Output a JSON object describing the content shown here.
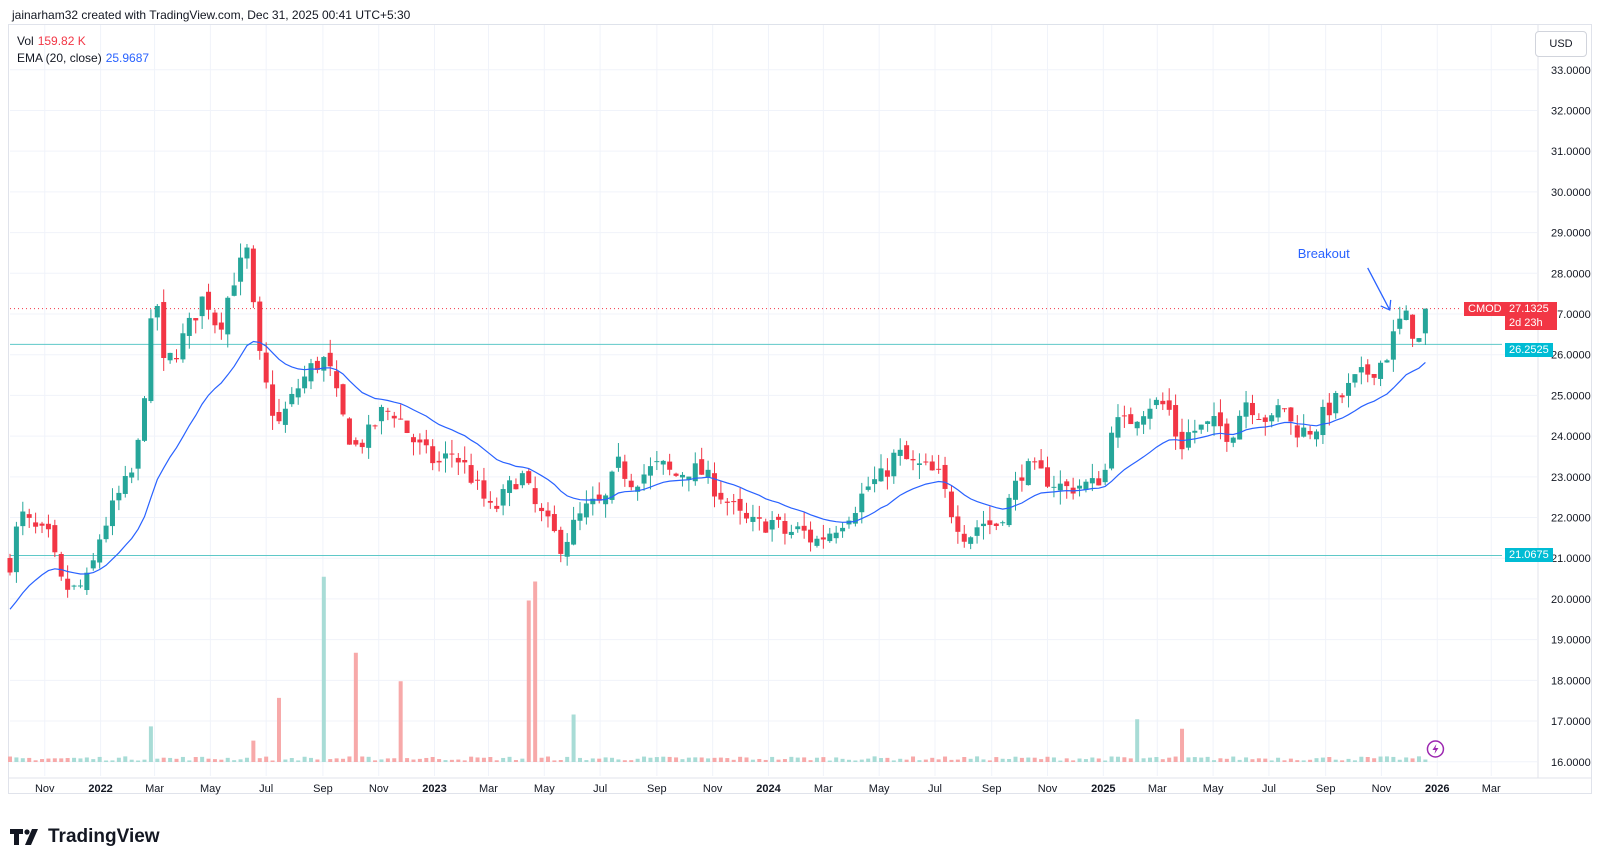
{
  "header": {
    "credit": "jainarham32 created with TradingView.com, Dec 31, 2025 00:41 UTC+5:30"
  },
  "legend": {
    "vol_label": "Vol",
    "vol_value": "159.82 K",
    "ema_label": "EMA (20, close)",
    "ema_value": "25.9687"
  },
  "currency": "USD",
  "brand": "TradingView",
  "annotation": {
    "text": "Breakout"
  },
  "price_tag": {
    "symbol": "CMOD",
    "price": "27.1325",
    "countdown": "2d 23h"
  },
  "hline_labels": [
    "26.2525",
    "21.0675"
  ],
  "colors": {
    "up": "#26a69a",
    "down": "#f23645",
    "ema": "#2962ff",
    "hline": "#5ec8c8",
    "vol_up": "#a8dcd6",
    "vol_down": "#f7a9a9"
  },
  "chart_data": {
    "type": "candlestick",
    "symbol": "CMOD",
    "interval": "weekly",
    "y_axis": {
      "ticks": [
        "16.0000",
        "17.0000",
        "18.0000",
        "19.0000",
        "20.0000",
        "21.0000",
        "22.0000",
        "23.0000",
        "24.0000",
        "25.0000",
        "26.0000",
        "27.0000",
        "28.0000",
        "29.0000",
        "30.0000",
        "31.0000",
        "32.0000",
        "33.0000"
      ],
      "range": [
        15.65,
        34.1
      ]
    },
    "x_axis": {
      "ticks": [
        "Nov",
        "2022",
        "Mar",
        "May",
        "Jul",
        "Sep",
        "Nov",
        "2023",
        "Mar",
        "May",
        "Jul",
        "Sep",
        "Nov",
        "2024",
        "Mar",
        "May",
        "Jul",
        "Sep",
        "Nov",
        "2025",
        "Mar",
        "May",
        "Jul",
        "Sep",
        "Nov",
        "2026",
        "Mar"
      ],
      "range": [
        "2021-09-24",
        "2026-04-20"
      ]
    },
    "horizontal_lines": [
      26.2525,
      21.0675
    ],
    "last_price": 27.1325,
    "price_anchors": [
      [
        "2021-09-24",
        20.9
      ],
      [
        "2021-10-05",
        22.1
      ],
      [
        "2021-10-20",
        21.7
      ],
      [
        "2021-11-05",
        21.5
      ],
      [
        "2021-11-20",
        20.3
      ],
      [
        "2021-12-05",
        20.2
      ],
      [
        "2021-12-20",
        20.5
      ],
      [
        "2022-01-01",
        21.6
      ],
      [
        "2022-01-20",
        22.5
      ],
      [
        "2022-02-05",
        23.1
      ],
      [
        "2022-02-15",
        24.2
      ],
      [
        "2022-02-22",
        26.4
      ],
      [
        "2022-03-05",
        27.3
      ],
      [
        "2022-03-10",
        25.7
      ],
      [
        "2022-03-25",
        26.1
      ],
      [
        "2022-04-10",
        26.8
      ],
      [
        "2022-04-25",
        27.5
      ],
      [
        "2022-05-10",
        26.6
      ],
      [
        "2022-05-25",
        27.8
      ],
      [
        "2022-06-10",
        28.5
      ],
      [
        "2022-06-22",
        26.1
      ],
      [
        "2022-07-05",
        24.8
      ],
      [
        "2022-07-15",
        24.3
      ],
      [
        "2022-08-05",
        25.2
      ],
      [
        "2022-08-20",
        25.7
      ],
      [
        "2022-09-05",
        25.9
      ],
      [
        "2022-09-20",
        24.6
      ],
      [
        "2022-10-05",
        23.7
      ],
      [
        "2022-10-20",
        24.0
      ],
      [
        "2022-11-05",
        24.6
      ],
      [
        "2022-11-20",
        24.6
      ],
      [
        "2022-12-05",
        24.0
      ],
      [
        "2022-12-20",
        23.6
      ],
      [
        "2023-01-05",
        23.3
      ],
      [
        "2023-01-20",
        23.6
      ],
      [
        "2023-02-05",
        23.2
      ],
      [
        "2023-02-20",
        22.6
      ],
      [
        "2023-03-05",
        22.1
      ],
      [
        "2023-03-20",
        22.6
      ],
      [
        "2023-04-05",
        23.1
      ],
      [
        "2023-04-20",
        22.3
      ],
      [
        "2023-05-05",
        21.8
      ],
      [
        "2023-05-20",
        21.3
      ],
      [
        "2023-06-05",
        21.9
      ],
      [
        "2023-06-20",
        22.3
      ],
      [
        "2023-07-05",
        22.3
      ],
      [
        "2023-07-20",
        23.3
      ],
      [
        "2023-08-05",
        22.9
      ],
      [
        "2023-08-20",
        23.1
      ],
      [
        "2023-09-05",
        23.3
      ],
      [
        "2023-09-20",
        23.0
      ],
      [
        "2023-10-05",
        23.2
      ],
      [
        "2023-10-20",
        23.1
      ],
      [
        "2023-11-05",
        22.7
      ],
      [
        "2023-11-20",
        22.3
      ],
      [
        "2023-12-05",
        21.9
      ],
      [
        "2023-12-20",
        21.8
      ],
      [
        "2024-01-05",
        21.9
      ],
      [
        "2024-01-20",
        21.6
      ],
      [
        "2024-02-05",
        21.7
      ],
      [
        "2024-02-20",
        21.4
      ],
      [
        "2024-03-05",
        21.6
      ],
      [
        "2024-03-20",
        21.9
      ],
      [
        "2024-04-05",
        22.3
      ],
      [
        "2024-04-20",
        22.8
      ],
      [
        "2024-05-05",
        23.0
      ],
      [
        "2024-05-20",
        23.6
      ],
      [
        "2024-06-05",
        23.3
      ],
      [
        "2024-06-20",
        23.2
      ],
      [
        "2024-07-05",
        23.0
      ],
      [
        "2024-07-20",
        22.1
      ],
      [
        "2024-08-05",
        21.5
      ],
      [
        "2024-08-20",
        21.9
      ],
      [
        "2024-09-05",
        21.8
      ],
      [
        "2024-09-20",
        22.4
      ],
      [
        "2024-10-05",
        23.2
      ],
      [
        "2024-10-20",
        23.1
      ],
      [
        "2024-11-05",
        22.9
      ],
      [
        "2024-11-20",
        22.7
      ],
      [
        "2024-12-05",
        22.8
      ],
      [
        "2024-12-20",
        22.8
      ],
      [
        "2025-01-05",
        23.2
      ],
      [
        "2025-01-10",
        24.3
      ],
      [
        "2025-01-25",
        24.3
      ],
      [
        "2025-02-05",
        24.5
      ],
      [
        "2025-02-20",
        24.8
      ],
      [
        "2025-03-05",
        24.8
      ],
      [
        "2025-03-15",
        24.6
      ],
      [
        "2025-03-25",
        23.7
      ],
      [
        "2025-04-05",
        24.1
      ],
      [
        "2025-04-20",
        24.2
      ],
      [
        "2025-05-05",
        24.3
      ],
      [
        "2025-05-20",
        24.0
      ],
      [
        "2025-06-05",
        24.9
      ],
      [
        "2025-06-20",
        24.6
      ],
      [
        "2025-07-05",
        24.3
      ],
      [
        "2025-07-15",
        24.9
      ],
      [
        "2025-07-25",
        24.3
      ],
      [
        "2025-08-05",
        24.1
      ],
      [
        "2025-08-20",
        24.2
      ],
      [
        "2025-09-05",
        24.7
      ],
      [
        "2025-09-20",
        25.0
      ],
      [
        "2025-10-05",
        25.4
      ],
      [
        "2025-10-20",
        25.6
      ],
      [
        "2025-11-05",
        25.9
      ],
      [
        "2025-11-15",
        26.5
      ],
      [
        "2025-11-25",
        27.0
      ],
      [
        "2025-12-05",
        26.6
      ],
      [
        "2025-12-15",
        26.2
      ],
      [
        "2025-12-25",
        27.1
      ]
    ],
    "volume_spikes_k": [
      [
        "2022-02-28",
        1500
      ],
      [
        "2022-06-15",
        900
      ],
      [
        "2022-07-12",
        2700
      ],
      [
        "2022-09-01",
        7800
      ],
      [
        "2022-10-08",
        4600
      ],
      [
        "2022-11-23",
        3400
      ],
      [
        "2023-04-12",
        6800
      ],
      [
        "2023-04-19",
        7600
      ],
      [
        "2023-06-01",
        2000
      ],
      [
        "2025-02-10",
        1800
      ],
      [
        "2025-03-28",
        1400
      ],
      [
        "2025-12-25",
        160
      ]
    ]
  }
}
